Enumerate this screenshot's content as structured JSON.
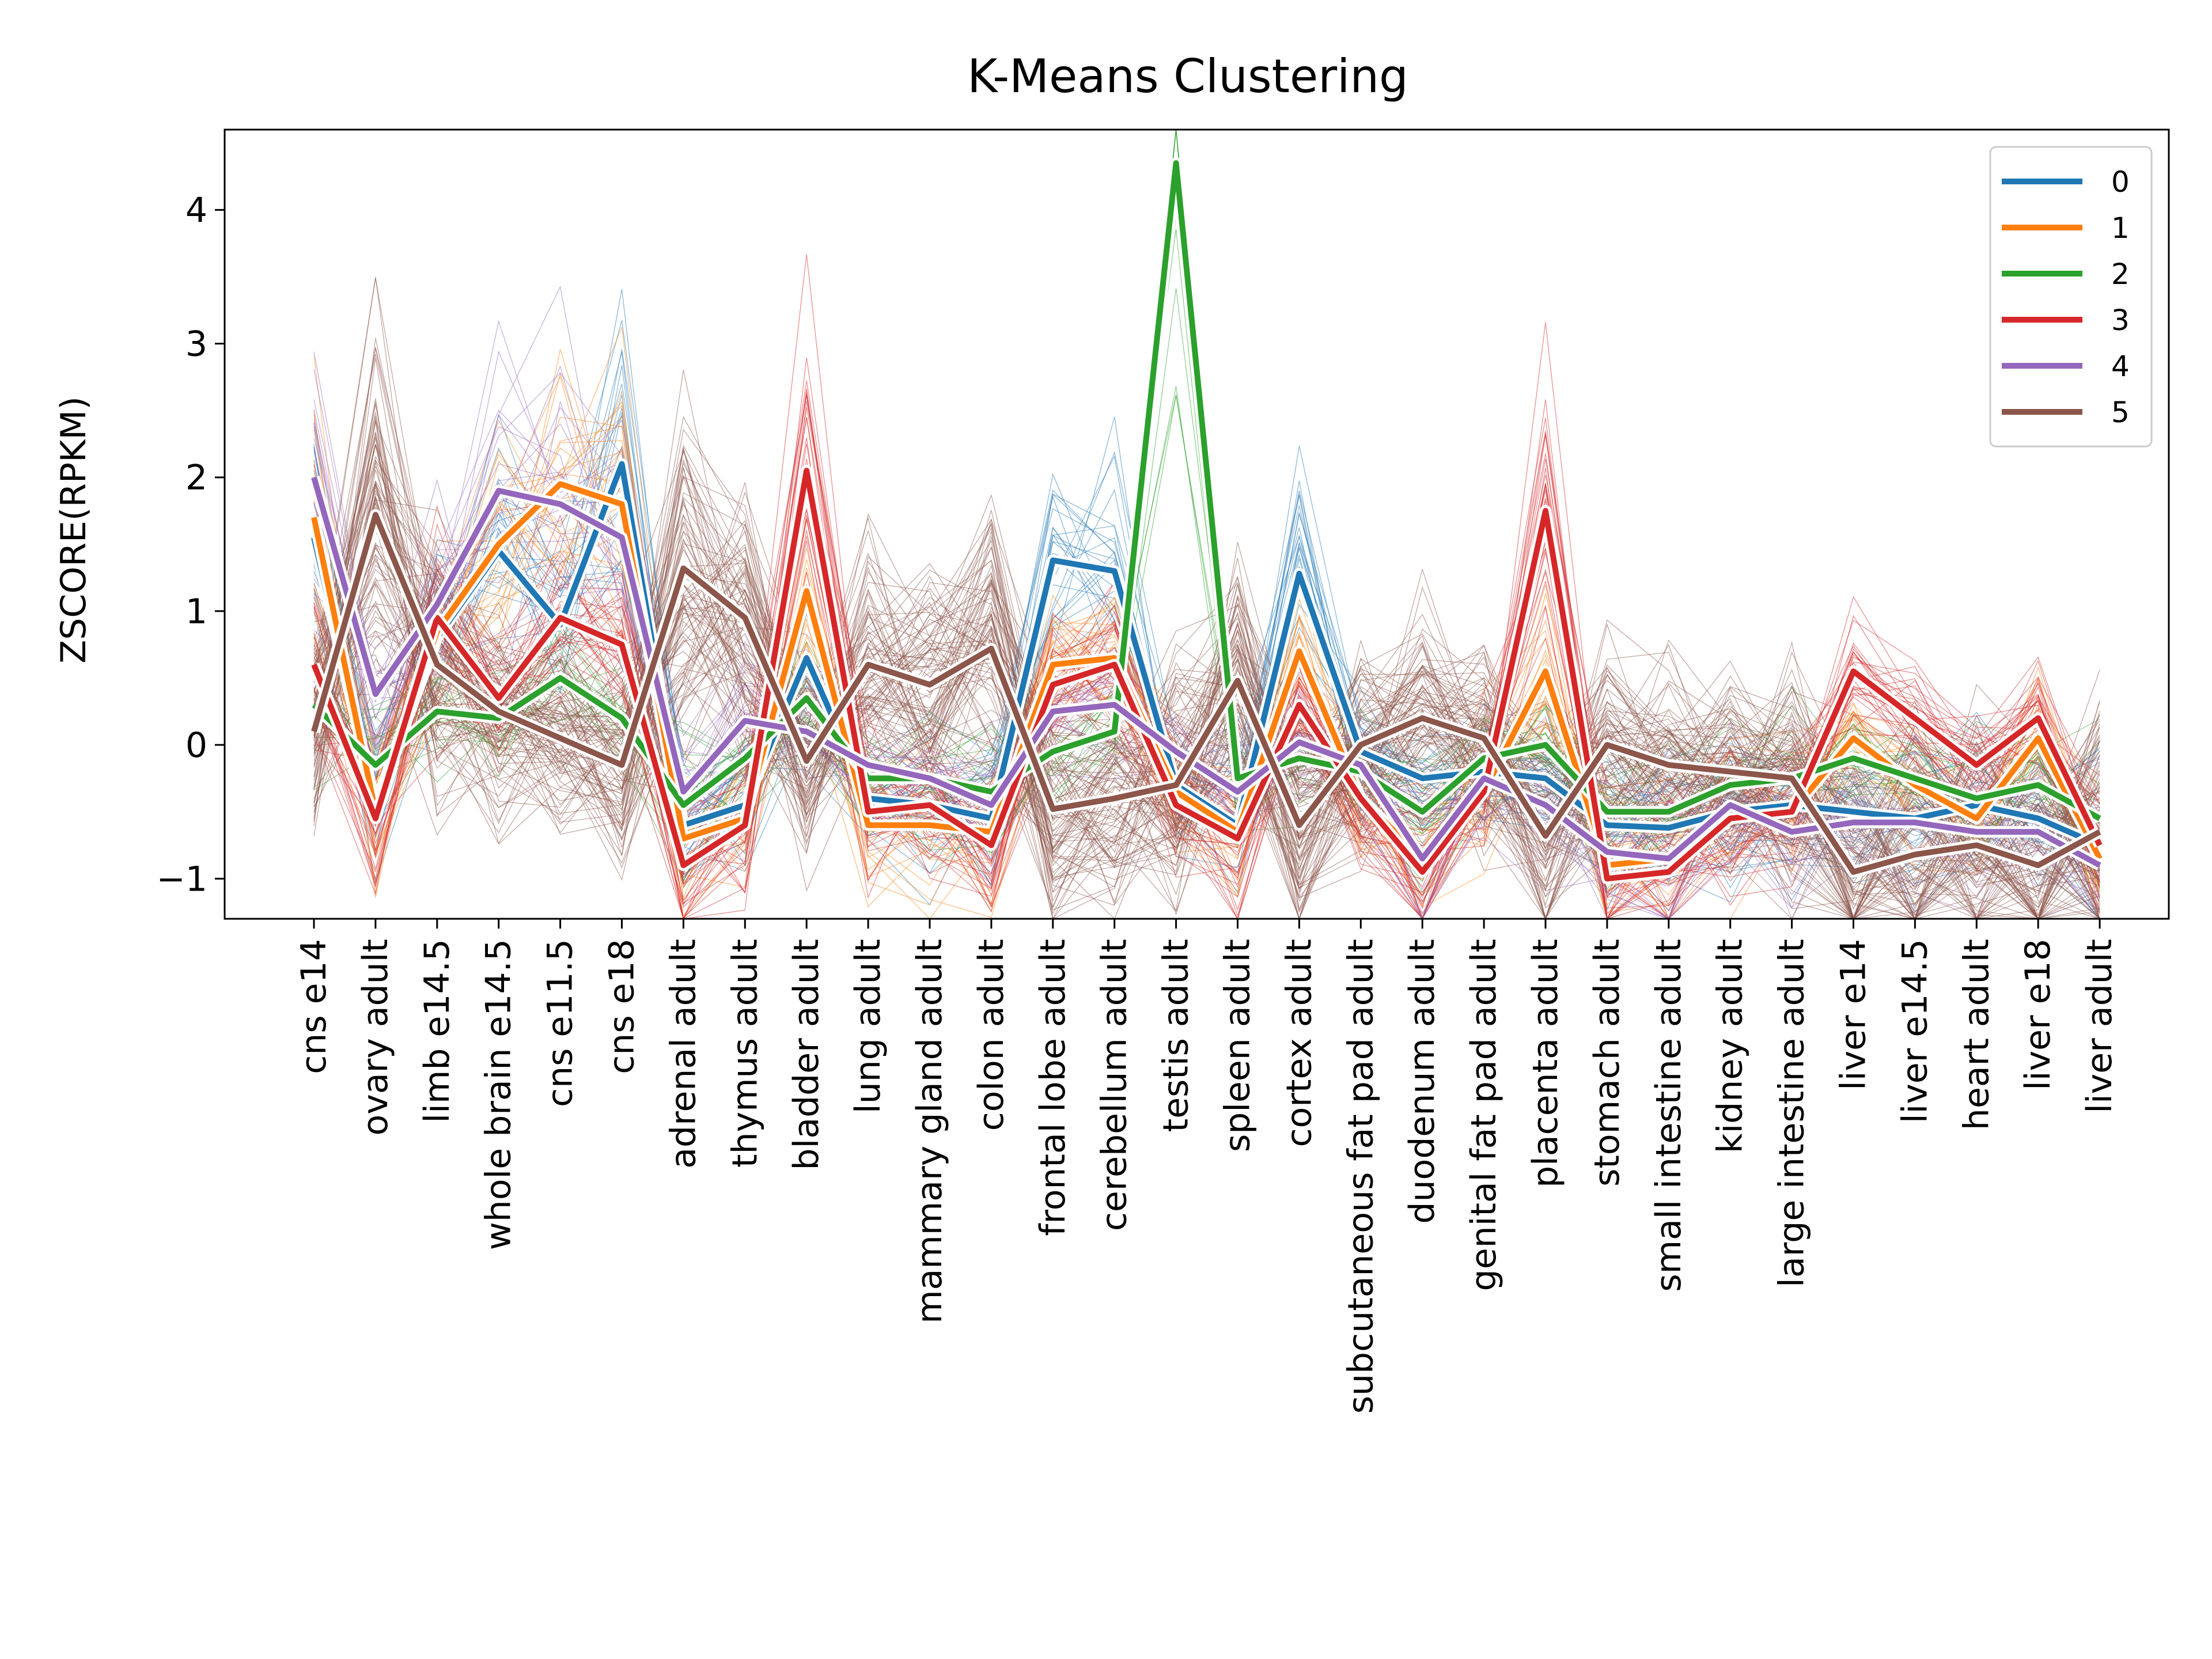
{
  "chart_data": {
    "type": "line",
    "title": "K-Means Clustering",
    "xlabel": "",
    "ylabel": "ZSCORE(RPKM)",
    "ylim": [
      -1.3,
      4.6
    ],
    "yticks": [
      -1,
      0,
      1,
      2,
      3,
      4
    ],
    "ytick_labels": [
      "−1",
      "0",
      "1",
      "2",
      "3",
      "4"
    ],
    "grid": false,
    "legend_position": "top-right",
    "categories": [
      "cns e14",
      "ovary adult",
      "limb e14.5",
      "whole brain e14.5",
      "cns e11.5",
      "cns e18",
      "adrenal adult",
      "thymus adult",
      "bladder adult",
      "lung adult",
      "mammary gland adult",
      "colon adult",
      "frontal lobe adult",
      "cerebellum adult",
      "testis adult",
      "spleen adult",
      "cortex adult",
      "subcutaneous fat pad adult",
      "duodenum adult",
      "genital fat pad adult",
      "placenta adult",
      "stomach adult",
      "small intestine adult",
      "kidney adult",
      "large intestine adult",
      "liver e14",
      "liver e14.5",
      "heart adult",
      "liver e18",
      "liver adult"
    ],
    "series": [
      {
        "name": "0",
        "color": "#1f77b4",
        "values": [
          1.55,
          -0.45,
          0.8,
          1.45,
          0.9,
          2.1,
          -0.6,
          -0.45,
          0.65,
          -0.4,
          -0.45,
          -0.55,
          1.38,
          1.3,
          -0.3,
          -0.6,
          1.28,
          -0.05,
          -0.25,
          -0.2,
          -0.25,
          -0.6,
          -0.62,
          -0.5,
          -0.45,
          -0.5,
          -0.55,
          -0.45,
          -0.55,
          -0.75
        ]
      },
      {
        "name": "1",
        "color": "#ff7f0e",
        "values": [
          1.7,
          -0.5,
          0.85,
          1.5,
          1.95,
          1.8,
          -0.7,
          -0.55,
          1.15,
          -0.6,
          -0.6,
          -0.65,
          0.6,
          0.65,
          -0.35,
          -0.65,
          0.7,
          -0.4,
          -0.85,
          -0.35,
          0.55,
          -0.9,
          -0.85,
          -0.55,
          -0.5,
          0.05,
          -0.3,
          -0.55,
          0.05,
          -0.85
        ]
      },
      {
        "name": "2",
        "color": "#2ca02c",
        "values": [
          0.3,
          -0.15,
          0.25,
          0.2,
          0.5,
          0.2,
          -0.45,
          -0.1,
          0.35,
          -0.25,
          -0.25,
          -0.35,
          -0.05,
          0.1,
          4.35,
          -0.25,
          -0.1,
          -0.2,
          -0.5,
          -0.1,
          0.0,
          -0.5,
          -0.5,
          -0.3,
          -0.25,
          -0.1,
          -0.25,
          -0.4,
          -0.3,
          -0.55
        ]
      },
      {
        "name": "3",
        "color": "#d62728",
        "values": [
          0.6,
          -0.55,
          0.95,
          0.35,
          0.95,
          0.75,
          -0.9,
          -0.6,
          2.05,
          -0.5,
          -0.45,
          -0.75,
          0.45,
          0.6,
          -0.45,
          -0.7,
          0.3,
          -0.4,
          -0.95,
          -0.35,
          1.75,
          -1.0,
          -0.95,
          -0.55,
          -0.5,
          0.55,
          0.2,
          -0.15,
          0.2,
          -0.75
        ]
      },
      {
        "name": "4",
        "color": "#9467bd",
        "values": [
          2.0,
          0.38,
          1.05,
          1.9,
          1.8,
          1.55,
          -0.35,
          0.18,
          0.1,
          -0.15,
          -0.25,
          -0.45,
          0.25,
          0.3,
          -0.05,
          -0.35,
          0.02,
          -0.15,
          -0.85,
          -0.25,
          -0.45,
          -0.8,
          -0.85,
          -0.45,
          -0.65,
          -0.58,
          -0.58,
          -0.65,
          -0.65,
          -0.9
        ]
      },
      {
        "name": "5",
        "color": "#8c564b",
        "values": [
          0.1,
          1.72,
          0.6,
          0.25,
          0.05,
          -0.15,
          1.32,
          0.95,
          -0.12,
          0.6,
          0.45,
          0.72,
          -0.48,
          -0.4,
          -0.3,
          0.48,
          -0.6,
          0.0,
          0.2,
          0.05,
          -0.68,
          0.0,
          -0.15,
          -0.2,
          -0.25,
          -0.95,
          -0.82,
          -0.75,
          -0.9,
          -0.65
        ]
      }
    ]
  }
}
